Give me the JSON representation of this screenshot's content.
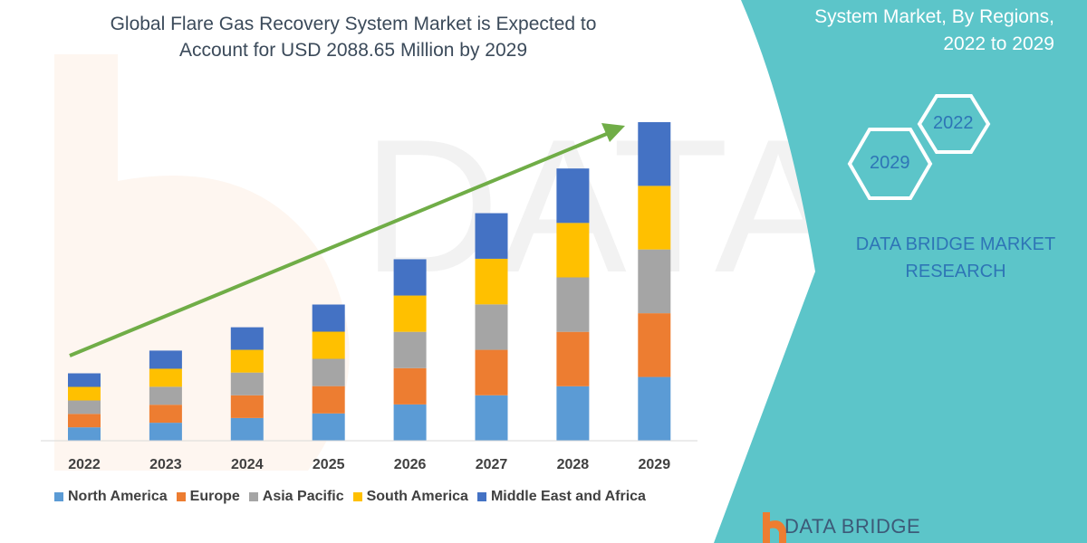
{
  "header": {
    "title_line1": "Global Flare Gas Recovery System Market is Expected to",
    "title_line2": "Account for USD 2088.65 Million by 2029"
  },
  "side_panel": {
    "title_line1": "System Market, By Regions,",
    "title_line2": "2022 to 2029",
    "hex_2022": "2022",
    "hex_2029": "2029",
    "brand_line1": "DATA BRIDGE MARKET",
    "brand_line2": "RESEARCH",
    "color": "#5cc5c9"
  },
  "logo": {
    "text": "DATA BRIDGE",
    "watermark": "DATA BRIDGE MARKET RESEARCH"
  },
  "chart_data": {
    "type": "bar",
    "stacked": true,
    "title": "Global Flare Gas Recovery System Market is Expected to Account for USD 2088.65 Million by 2029",
    "categories": [
      "2022",
      "2023",
      "2024",
      "2025",
      "2026",
      "2027",
      "2028",
      "2029"
    ],
    "series": [
      {
        "name": "North America",
        "color": "#5b9bd5",
        "values": [
          88,
          118,
          149,
          179,
          238,
          298,
          357,
          418
        ]
      },
      {
        "name": "Europe",
        "color": "#ed7d31",
        "values": [
          88,
          118,
          149,
          179,
          238,
          298,
          357,
          418
        ]
      },
      {
        "name": "Asia Pacific",
        "color": "#a5a5a5",
        "values": [
          88,
          118,
          149,
          179,
          238,
          298,
          357,
          418
        ]
      },
      {
        "name": "South America",
        "color": "#ffc000",
        "values": [
          89,
          118,
          149,
          178,
          238,
          299,
          357,
          417
        ]
      },
      {
        "name": "Middle East and Africa",
        "color": "#4472c4",
        "values": [
          89,
          119,
          148,
          178,
          238,
          299,
          357,
          418
        ]
      }
    ],
    "ylim": [
      0,
      2100
    ],
    "y_axis_shown": false,
    "grid": false,
    "legend_position": "bottom",
    "trend_arrow_color": "#70ad47",
    "unit": "USD Million"
  }
}
